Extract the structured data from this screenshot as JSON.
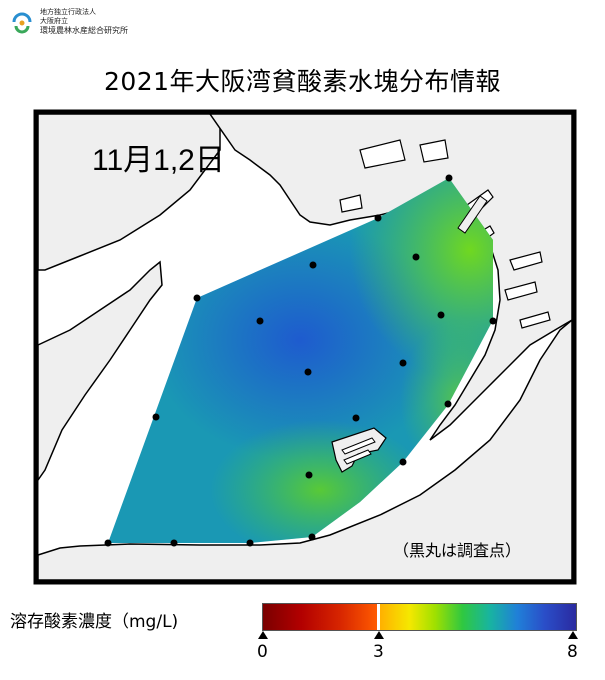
{
  "org": {
    "line1": "地方独立行政法人",
    "line2": "大阪府立",
    "line3": "環境農林水産総合研究所"
  },
  "title": "2021年大阪湾貧酸素水塊分布情報",
  "map": {
    "date_label": "11月1,2日",
    "note": "（黒丸は調査点）",
    "colors": {
      "land": "#efefef",
      "sea": "#ffffff",
      "coast": "#000000",
      "station": "#000000"
    }
  },
  "legend": {
    "label": "溶存酸素濃度（mg/L)",
    "ticks": [
      "0",
      "3",
      "8"
    ],
    "colors": [
      "#7a0000",
      "#ff5a00",
      "#ffb000",
      "#f5e800",
      "#30c840",
      "#2080d8",
      "#2a2aa0"
    ]
  }
}
